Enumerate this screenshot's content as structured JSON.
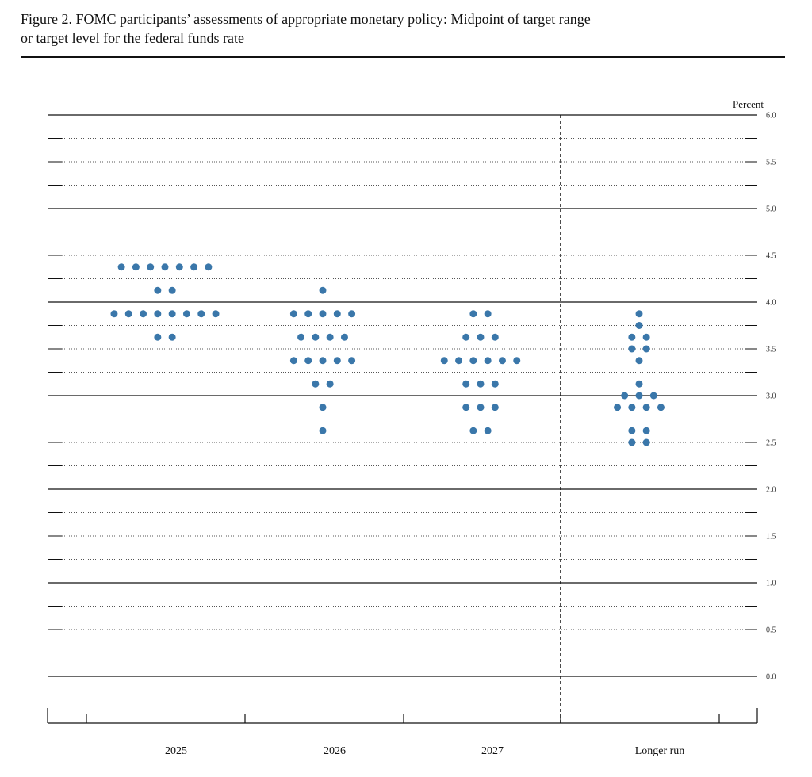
{
  "chart_data": {
    "type": "dot",
    "title": "Figure 2.  FOMC participants’ assessments of appropriate monetary policy: Midpoint of target range or target level for the federal funds rate",
    "y_label": "Percent",
    "categories": [
      "2025",
      "2026",
      "2027",
      "Longer run"
    ],
    "values": [
      [
        4.375,
        4.375,
        4.375,
        4.375,
        4.375,
        4.375,
        4.375,
        4.125,
        4.125,
        3.875,
        3.875,
        3.875,
        3.875,
        3.875,
        3.875,
        3.875,
        3.875,
        3.625,
        3.625
      ],
      [
        4.125,
        3.875,
        3.875,
        3.875,
        3.875,
        3.875,
        3.625,
        3.625,
        3.625,
        3.625,
        3.375,
        3.375,
        3.375,
        3.375,
        3.375,
        3.125,
        3.125,
        2.875,
        2.625
      ],
      [
        3.875,
        3.875,
        3.625,
        3.625,
        3.625,
        3.375,
        3.375,
        3.375,
        3.375,
        3.375,
        3.375,
        3.125,
        3.125,
        3.125,
        2.875,
        2.875,
        2.875,
        2.625,
        2.625
      ],
      [
        3.875,
        3.75,
        3.625,
        3.625,
        3.5,
        3.5,
        3.375,
        3.125,
        3,
        3,
        3,
        2.875,
        2.875,
        2.875,
        2.875,
        2.625,
        2.625,
        2.5,
        2.5
      ]
    ],
    "color": "#3a77aa",
    "ylim": [
      0,
      6
    ],
    "yticks": [
      {
        "value": 0,
        "label": "0.0"
      },
      0.5,
      {
        "value": 1,
        "label": "1.0"
      },
      1.5,
      {
        "value": 2,
        "label": "2.0"
      },
      2.5,
      {
        "value": 3,
        "label": "3.0"
      },
      3.5,
      {
        "value": 4,
        "label": "4.0"
      },
      4.5,
      {
        "value": 5,
        "label": "5.0"
      },
      5.5,
      {
        "value": 6,
        "label": "6.0"
      }
    ],
    "minor_yticks": [
      0.25,
      0.75,
      1.25,
      1.75,
      2.25,
      2.75,
      3.25,
      3.75,
      4.25,
      4.75,
      5.25,
      5.75
    ]
  }
}
